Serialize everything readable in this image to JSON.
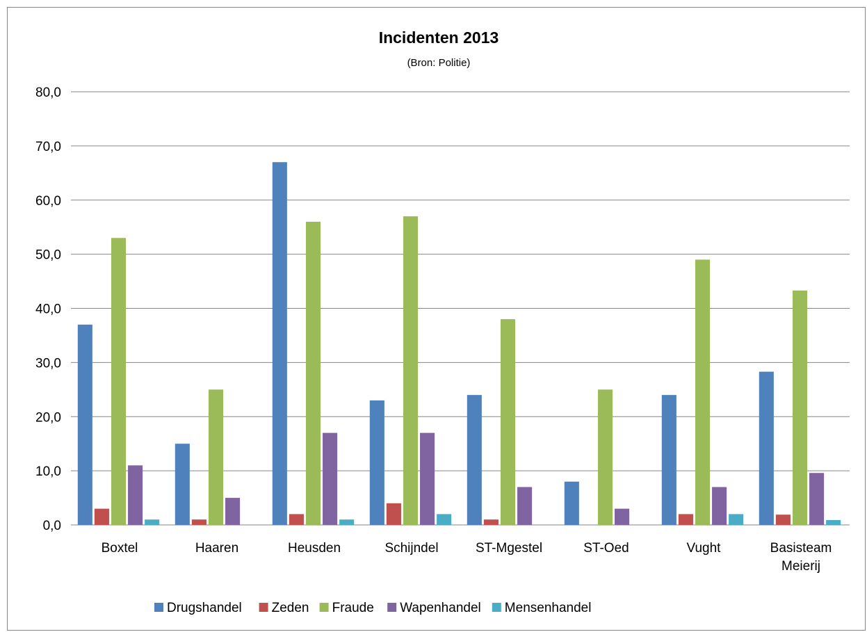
{
  "chart_data": {
    "type": "bar",
    "title": "Incidenten 2013",
    "subtitle": "(Bron: Politie)",
    "categories": [
      "Boxtel",
      "Haaren",
      "Heusden",
      "Schijndel",
      "ST-Mgestel",
      "ST-Oed",
      "Vught",
      "Basisteam Meierij"
    ],
    "series": [
      {
        "name": "Drugshandel",
        "color": "#4F81BD",
        "values": [
          37,
          15,
          67,
          23,
          24,
          8,
          24,
          28.3
        ]
      },
      {
        "name": "Zeden",
        "color": "#C0504D",
        "values": [
          3,
          1,
          2,
          4,
          1,
          0,
          2,
          1.9
        ]
      },
      {
        "name": "Fraude",
        "color": "#9BBB59",
        "values": [
          53,
          25,
          56,
          57,
          38,
          25,
          49,
          43.3
        ]
      },
      {
        "name": "Wapenhandel",
        "color": "#8064A2",
        "values": [
          11,
          5,
          17,
          17,
          7,
          3,
          7,
          9.6
        ]
      },
      {
        "name": "Mensenhandel",
        "color": "#4BACC6",
        "values": [
          1,
          0,
          1,
          2,
          0,
          0,
          2,
          0.9
        ]
      }
    ],
    "ylim": [
      0,
      80
    ],
    "yticks": [
      "0,0",
      "10,0",
      "20,0",
      "30,0",
      "40,0",
      "50,0",
      "60,0",
      "70,0",
      "80,0"
    ],
    "grid": true,
    "legend": "bottom",
    "xlabel": "",
    "ylabel": ""
  }
}
